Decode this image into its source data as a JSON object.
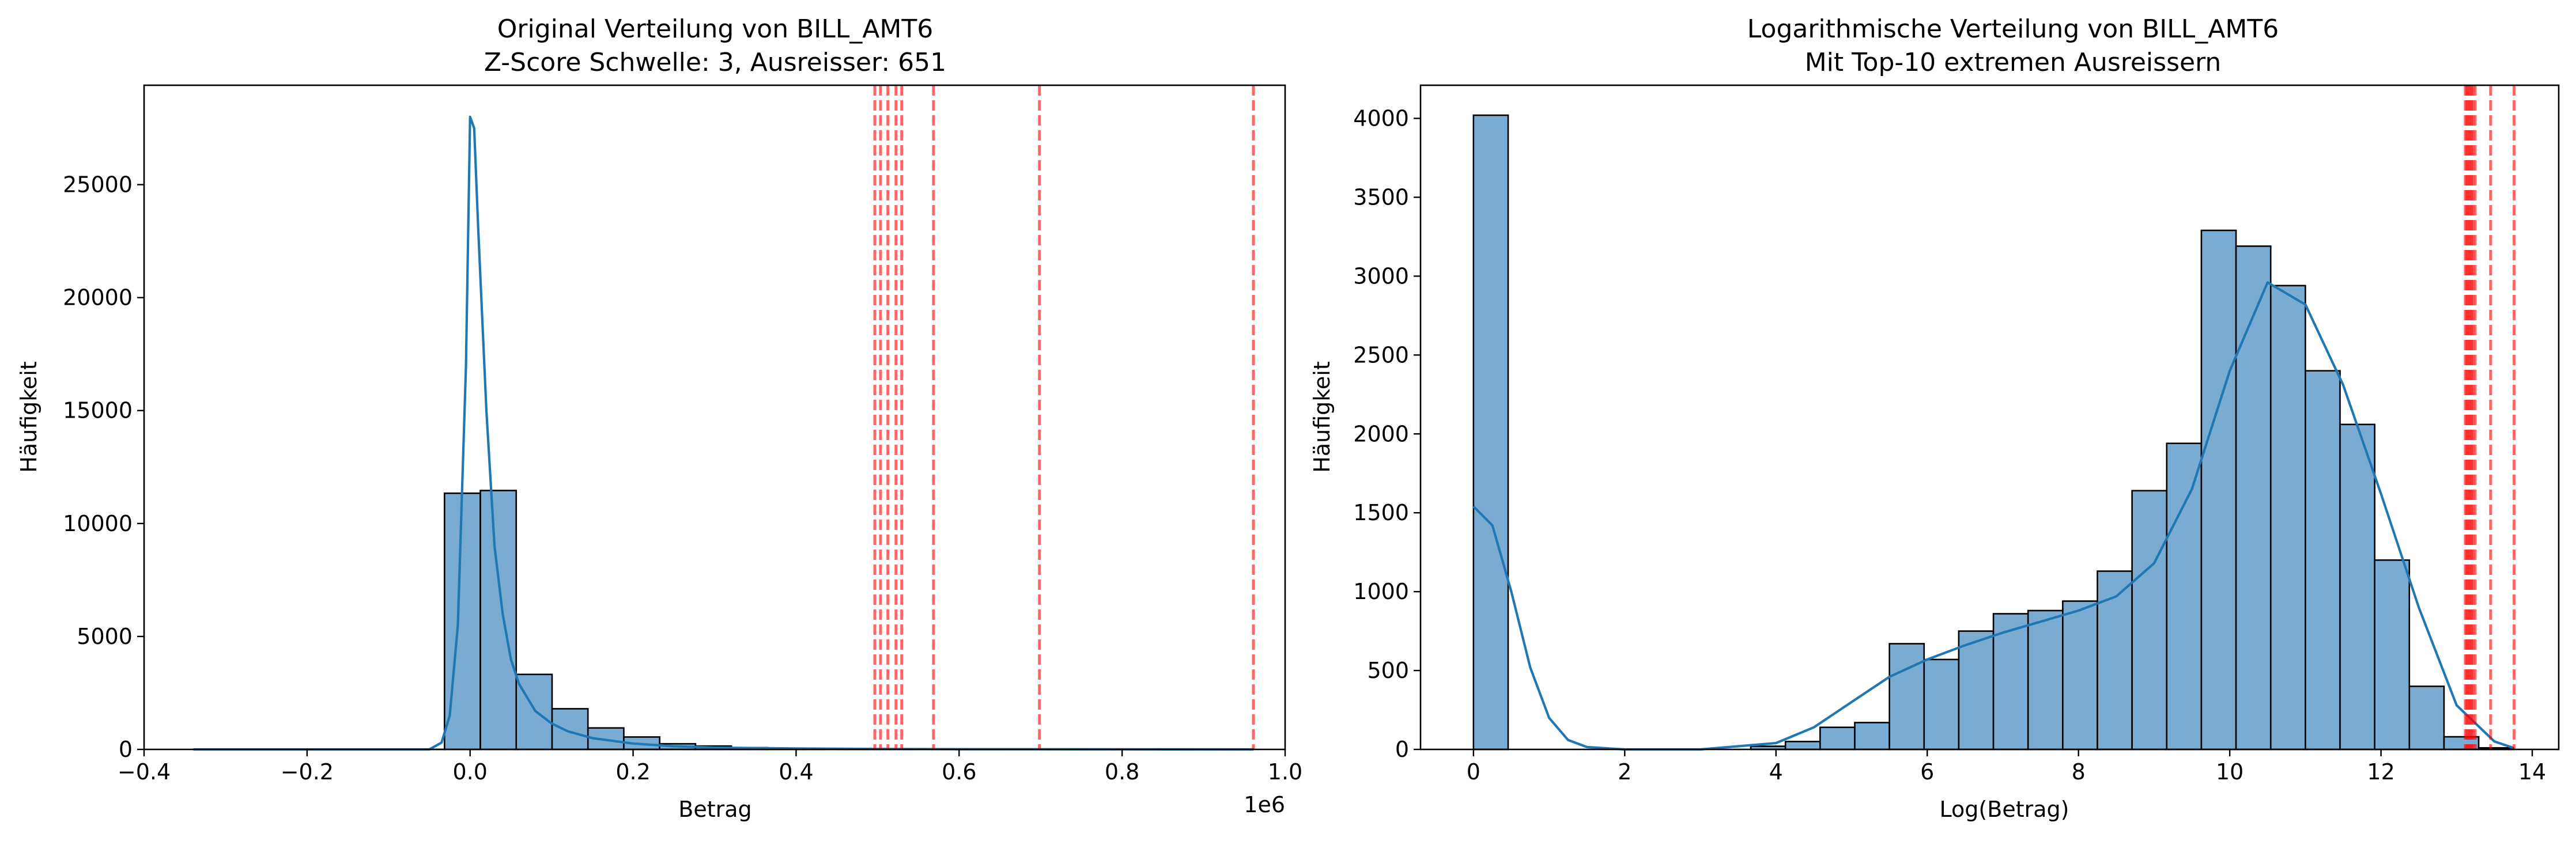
{
  "chart_data": [
    {
      "type": "histogram",
      "title_lines": [
        "Original Verteilung von BILL_AMT6",
        "Z-Score Schwelle: 3, Ausreisser: 651"
      ],
      "xlabel": "Betrag",
      "ylabel": "Häufigkeit",
      "x_offset_label": "1e6",
      "xlim": [
        -0.4,
        1.0
      ],
      "ylim": [
        0,
        29400
      ],
      "xticks": [
        -0.4,
        -0.2,
        0.0,
        0.2,
        0.4,
        0.6,
        0.8,
        1.0
      ],
      "xtick_labels": [
        "−0.4",
        "−0.2",
        "0.0",
        "0.2",
        "0.4",
        "0.6",
        "0.8",
        "1.0"
      ],
      "yticks": [
        0,
        5000,
        10000,
        15000,
        20000,
        25000
      ],
      "ytick_labels": [
        "0",
        "5000",
        "10000",
        "15000",
        "20000",
        "25000"
      ],
      "bins_x": [
        -0.3394,
        -0.2954,
        -0.2514,
        -0.2074,
        -0.1634,
        -0.1194,
        -0.0754,
        -0.0314,
        0.0126,
        0.0566,
        0.1006,
        0.1446,
        0.1886,
        0.2326,
        0.2766,
        0.3206,
        0.3646,
        0.4086,
        0.4526,
        0.4966,
        0.5406,
        0.5846,
        0.6286,
        0.6726,
        0.7166,
        0.7606,
        0.8046,
        0.8486,
        0.8926,
        0.9306,
        0.9611
      ],
      "counts": [
        1,
        0,
        0,
        0,
        0,
        1,
        3,
        11340,
        11460,
        3320,
        1800,
        950,
        550,
        250,
        150,
        80,
        50,
        30,
        20,
        15,
        10,
        8,
        5,
        3,
        2,
        2,
        1,
        1,
        1,
        1
      ],
      "kde_x": [
        -0.3394,
        -0.1,
        -0.05,
        -0.035,
        -0.025,
        -0.015,
        -0.005,
        0.0,
        0.005,
        0.01,
        0.02,
        0.03,
        0.04,
        0.05,
        0.06,
        0.08,
        0.1,
        0.12,
        0.15,
        0.2,
        0.25,
        0.3,
        0.4,
        0.5,
        0.6,
        0.8,
        0.9611
      ],
      "kde_y": [
        0,
        0,
        0,
        300,
        1500,
        5500,
        17000,
        28000,
        27500,
        23000,
        15000,
        9000,
        6000,
        4000,
        2900,
        1700,
        1150,
        800,
        500,
        260,
        140,
        80,
        40,
        20,
        10,
        5,
        0
      ],
      "outlier_lines_x": [
        0.4966,
        0.5036,
        0.5126,
        0.5226,
        0.5296,
        0.5686,
        0.6986,
        0.9611
      ],
      "bar_color": "#7aabd2",
      "kde_color": "#1f77b4",
      "outlier_color": "#ff0000"
    },
    {
      "type": "histogram",
      "title_lines": [
        "Logarithmische Verteilung von BILL_AMT6",
        "Mit Top-10 extremen Ausreissern"
      ],
      "xlabel": "Log(Betrag)",
      "ylabel": "Häufigkeit",
      "xlim": [
        -0.7,
        14.35
      ],
      "ylim": [
        0,
        4210
      ],
      "xticks": [
        0,
        2,
        4,
        6,
        8,
        10,
        12,
        14
      ],
      "xtick_labels": [
        "0",
        "2",
        "4",
        "6",
        "8",
        "10",
        "12",
        "14"
      ],
      "yticks": [
        0,
        500,
        1000,
        1500,
        2000,
        2500,
        3000,
        3500,
        4000
      ],
      "ytick_labels": [
        "0",
        "500",
        "1000",
        "1500",
        "2000",
        "2500",
        "3000",
        "3500",
        "4000"
      ],
      "bins_x": [
        0,
        0.4583,
        0.9167,
        1.375,
        1.8333,
        2.2917,
        2.75,
        3.2083,
        3.6667,
        4.125,
        4.5833,
        5.0417,
        5.5,
        5.9583,
        6.4167,
        6.875,
        7.3333,
        7.7917,
        8.25,
        8.7083,
        9.1667,
        9.625,
        10.0833,
        10.5417,
        11.0,
        11.4583,
        11.9167,
        12.375,
        12.8333,
        13.2917,
        13.75
      ],
      "counts": [
        4020,
        0,
        0,
        0,
        0,
        0,
        0,
        0,
        20,
        50,
        140,
        170,
        670,
        570,
        750,
        860,
        880,
        940,
        1130,
        1640,
        1940,
        3290,
        3190,
        2940,
        2400,
        2060,
        1200,
        400,
        80,
        10
      ],
      "kde_x": [
        0,
        0.25,
        0.5,
        0.75,
        1.0,
        1.25,
        1.5,
        2.0,
        3.0,
        4.0,
        4.5,
        5.0,
        5.5,
        6.0,
        6.5,
        7.0,
        7.5,
        8.0,
        8.5,
        9.0,
        9.5,
        10.0,
        10.5,
        11.0,
        11.5,
        12.0,
        12.5,
        13.0,
        13.5,
        13.75
      ],
      "kde_y": [
        1540,
        1420,
        1000,
        520,
        200,
        60,
        15,
        0,
        0,
        40,
        140,
        300,
        460,
        570,
        660,
        740,
        810,
        880,
        970,
        1180,
        1650,
        2400,
        2960,
        2820,
        2310,
        1620,
        900,
        280,
        50,
        10
      ],
      "outlier_lines_x": [
        13.115,
        13.135,
        13.155,
        13.175,
        13.195,
        13.215,
        13.245,
        13.45,
        13.76
      ],
      "bar_color": "#7aabd2",
      "kde_color": "#1f77b4",
      "outlier_color": "#ff0000"
    }
  ]
}
